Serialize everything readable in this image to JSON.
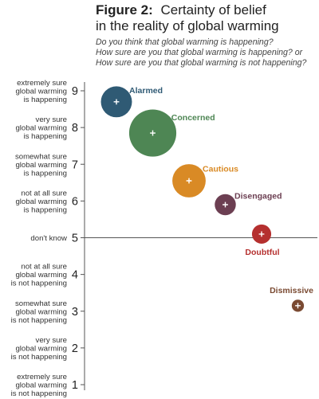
{
  "figure": {
    "label": "Figure 2:",
    "title_line1": "Certainty of belief",
    "title_line2": "in the reality of global warming"
  },
  "chart_data": {
    "type": "scatter",
    "questions": [
      "Do you think that global warming is happening?",
      "How sure are you that global warming is happening? or",
      "How sure are you that global warming is not happening?"
    ],
    "ylim": [
      1,
      9
    ],
    "yticks": [
      {
        "value": 9,
        "label": [
          "extremely sure",
          "global warming",
          "is happening"
        ]
      },
      {
        "value": 8,
        "label": [
          "very sure",
          "global warming",
          "is happening"
        ]
      },
      {
        "value": 7,
        "label": [
          "somewhat sure",
          "global warming",
          "is happening"
        ]
      },
      {
        "value": 6,
        "label": [
          "not at all sure",
          "global warming",
          "is happening"
        ]
      },
      {
        "value": 5,
        "label": [
          "don't know"
        ]
      },
      {
        "value": 4,
        "label": [
          "not at all sure",
          "global warming",
          "is not happening"
        ]
      },
      {
        "value": 3,
        "label": [
          "somewhat sure",
          "global warming",
          "is not happening"
        ]
      },
      {
        "value": 2,
        "label": [
          "very sure",
          "global warming",
          "is not happening"
        ]
      },
      {
        "value": 1,
        "label": [
          "extremely sure",
          "global warming",
          "is not happening"
        ]
      }
    ],
    "reference_line": 5,
    "segments": [
      {
        "name": "Alarmed",
        "y": 8.7,
        "order": 1,
        "size": 13,
        "color": "#2f5a74",
        "label_pos": "right-top"
      },
      {
        "name": "Concerned",
        "y": 7.85,
        "order": 2,
        "size": 30,
        "color": "#4e8654",
        "label_pos": "right-top"
      },
      {
        "name": "Cautious",
        "y": 6.55,
        "order": 3,
        "size": 15,
        "color": "#d98a25",
        "label_pos": "right-top"
      },
      {
        "name": "Disengaged",
        "y": 5.9,
        "order": 4,
        "size": 6,
        "color": "#6c3f52",
        "label_pos": "right-top"
      },
      {
        "name": "Doubtful",
        "y": 5.1,
        "order": 5,
        "size": 5,
        "color": "#b5302f",
        "label_pos": "below"
      },
      {
        "name": "Dismissive",
        "y": 3.15,
        "order": 6,
        "size": 2,
        "color": "#7a4a32",
        "label_pos": "above"
      }
    ]
  }
}
